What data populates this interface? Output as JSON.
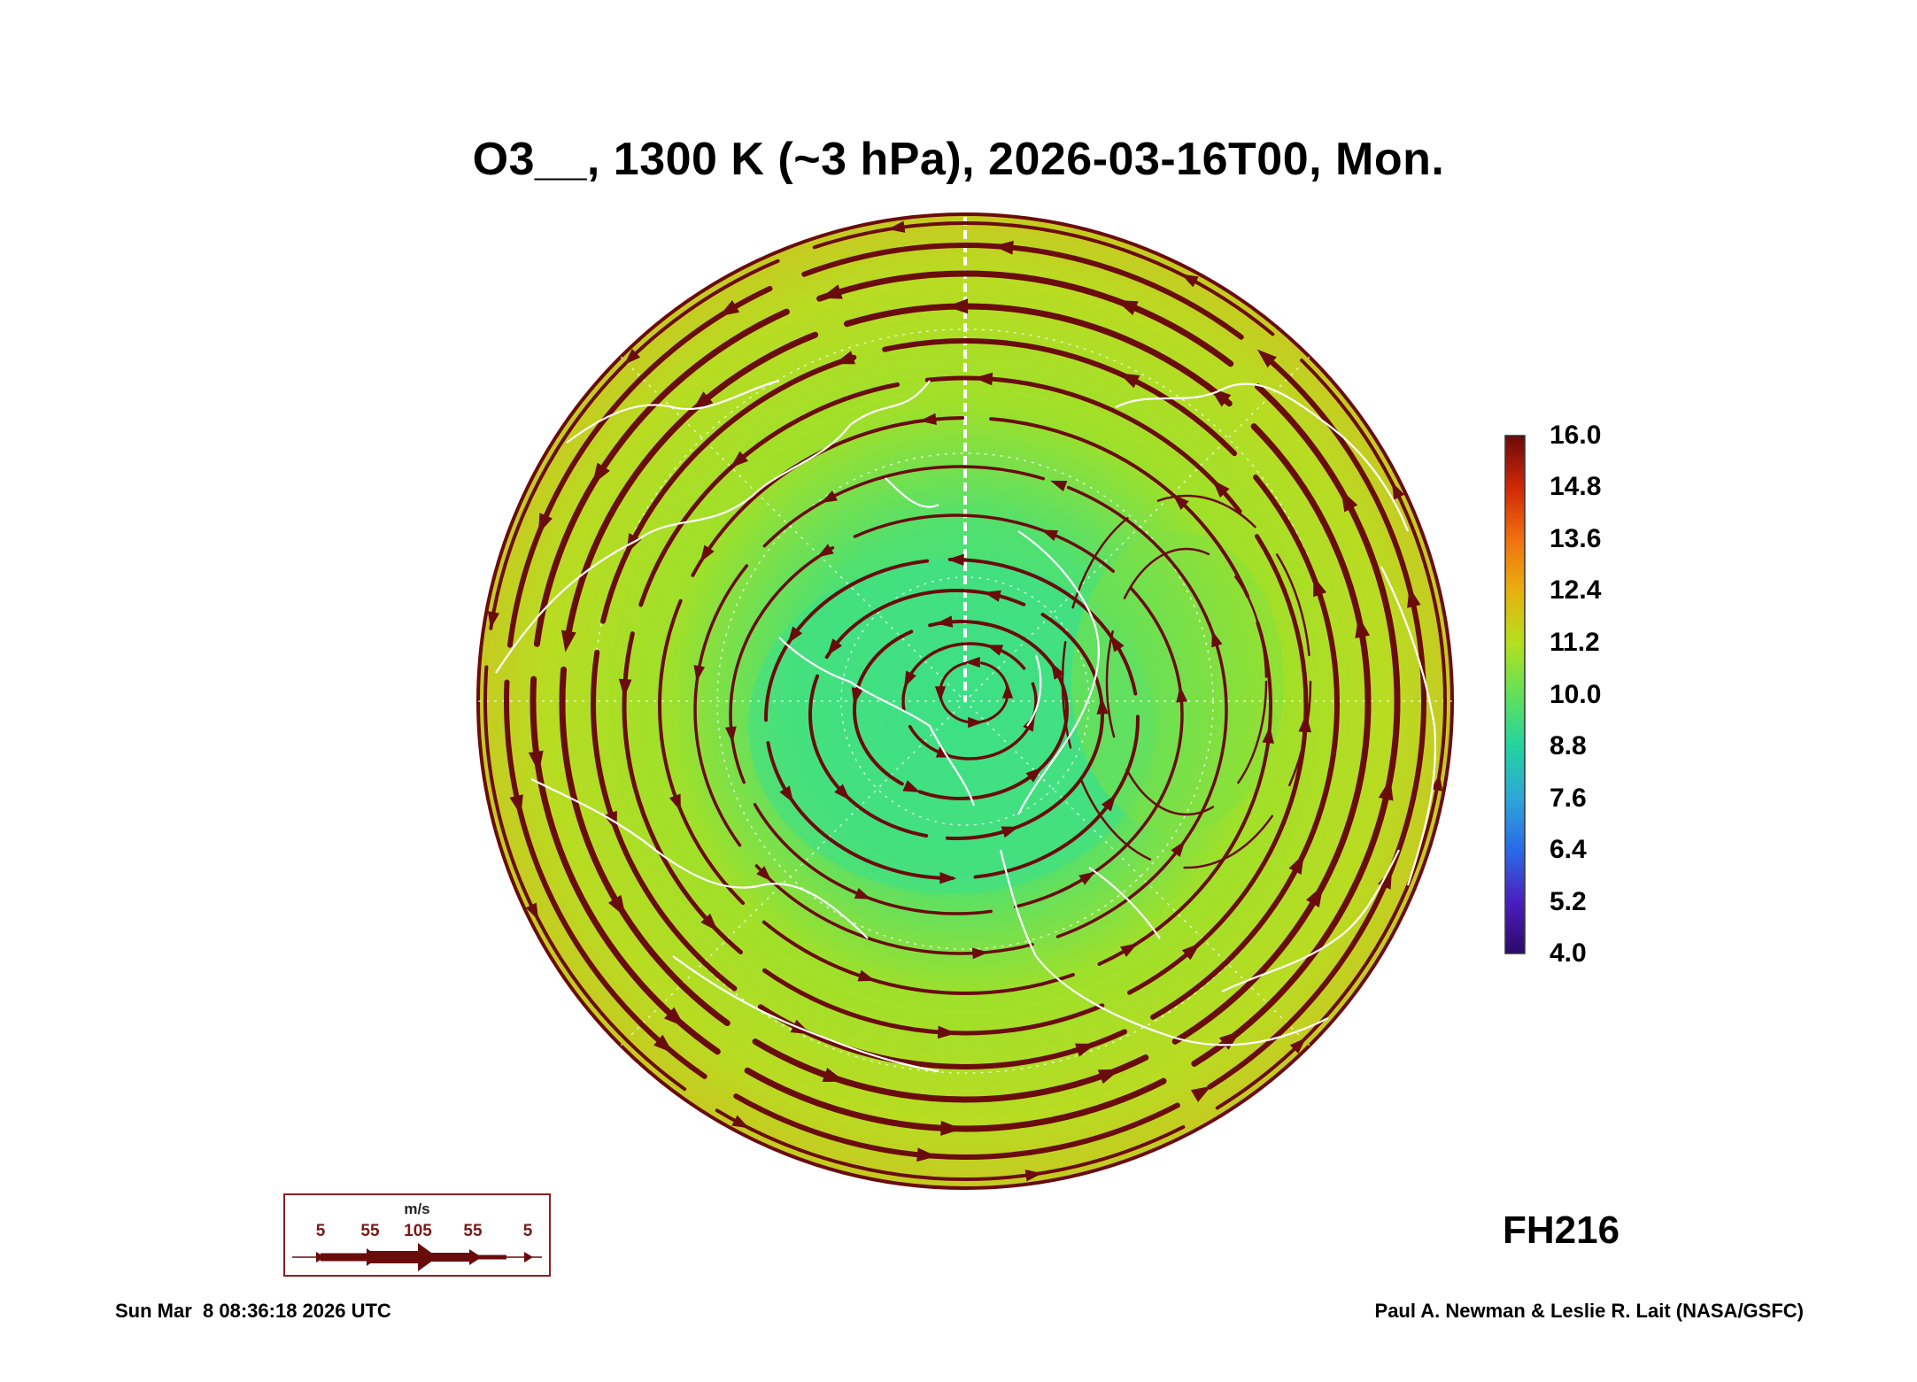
{
  "title": "O3__, 1300 K (~3 hPa), 2026-03-16T00, Mon.",
  "colorbar": {
    "labels": [
      "16.0",
      "14.8",
      "13.6",
      "12.4",
      "11.2",
      "10.0",
      "8.8",
      "7.6",
      "6.4",
      "5.2",
      "4.0"
    ],
    "colors": [
      "#2a0a6a",
      "#4a1fbf",
      "#2a6be8",
      "#2ea6d8",
      "#24d3a0",
      "#62e05a",
      "#b4e01e",
      "#e8b010",
      "#f07010",
      "#d02808",
      "#6a0a0a"
    ]
  },
  "map": {
    "projection": "north polar stereographic",
    "field_colors": {
      "outer": "#c8c820",
      "middle": "#9fe02a",
      "inner": "#3fe080"
    },
    "streamline_color": "#6a0c0c",
    "coastline_color": "#ffffff"
  },
  "forecast_hour": "FH216",
  "wind_legend": {
    "unit": "m/s",
    "speeds": [
      "5",
      "55",
      "105",
      "55",
      "5"
    ]
  },
  "footer": {
    "timestamp": "Sun Mar  8 08:36:18 2026 UTC",
    "credit": "Paul A. Newman & Leslie R. Lait (NASA/GSFC)"
  }
}
